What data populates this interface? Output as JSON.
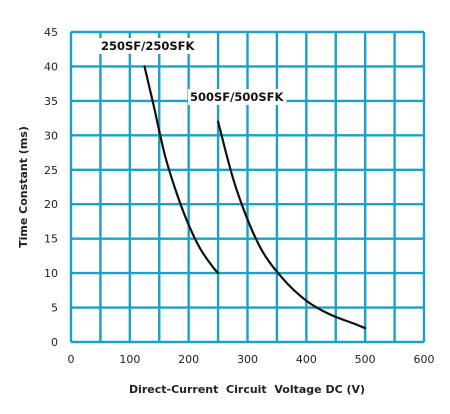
{
  "chart_data": {
    "type": "line",
    "title": "",
    "xlabel": "Direct-Current  Circuit  Voltage DC (V)",
    "ylabel": "Time Constant (ms)",
    "xlim": [
      0,
      600
    ],
    "ylim": [
      0,
      45
    ],
    "x_ticks": [
      "0",
      "100",
      "200",
      "300",
      "400",
      "500",
      "600"
    ],
    "y_ticks": [
      "0",
      "5",
      "10",
      "15",
      "20",
      "25",
      "30",
      "35",
      "40",
      "45"
    ],
    "grid": true,
    "grid_color": "#1ba1c4",
    "line_color": "#111111",
    "series": [
      {
        "name": "250SF/250SFK",
        "x": [
          125,
          140,
          160,
          180,
          200,
          220,
          240,
          250
        ],
        "y": [
          40,
          34.5,
          27,
          21.5,
          17,
          13.5,
          11,
          10
        ]
      },
      {
        "name": "500SF/500SFK",
        "x": [
          250,
          280,
          320,
          360,
          400,
          440,
          480,
          500
        ],
        "y": [
          32,
          22.5,
          14,
          9.2,
          6,
          4,
          2.7,
          2
        ]
      }
    ]
  }
}
